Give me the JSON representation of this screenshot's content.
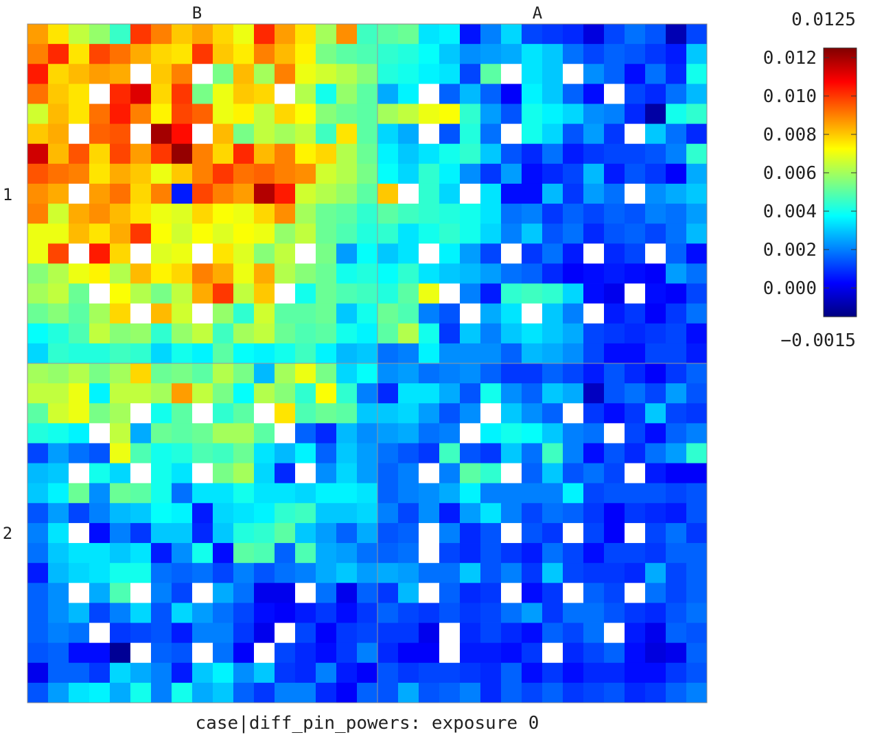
{
  "chart_data": {
    "type": "heatmap",
    "title": "case|diff_pin_powers: exposure 0",
    "column_labels": [
      "B",
      "A"
    ],
    "row_labels": [
      "1",
      "2"
    ],
    "pins_per_assembly": 17,
    "colorbar": {
      "min_label": "−0.0015",
      "max_label": "0.0125",
      "range": [
        -0.0015,
        0.0125
      ],
      "ticks": [
        0.012,
        0.01,
        0.008,
        0.006,
        0.004,
        0.002,
        0.0
      ],
      "tick_labels": [
        "0.012",
        "0.010",
        "0.008",
        "0.006",
        "0.004",
        "0.002",
        "0.000"
      ],
      "colormap": "jet"
    },
    "empty_cell_color": "#ffffff",
    "values": [
      [
        0.0086,
        0.0076,
        0.0064,
        0.0058,
        0.0045,
        0.01,
        0.009,
        0.008,
        0.0085,
        0.0078,
        0.007,
        0.0102,
        0.0086,
        0.0076,
        0.006,
        0.0088,
        0.0046,
        0.005,
        0.0052,
        0.0034,
        0.0036,
        0.0005,
        0.002,
        0.0032,
        0.0012,
        0.001,
        0.0008,
        -0.0002,
        0.0012,
        0.0018,
        0.0014,
        -0.0008,
        0.0012
      ],
      [
        0.009,
        0.0102,
        0.0076,
        0.0098,
        0.0092,
        0.0084,
        0.0078,
        0.0076,
        0.01,
        0.008,
        0.0075,
        0.009,
        0.0082,
        0.0074,
        0.0054,
        0.005,
        0.0048,
        0.0044,
        0.0042,
        0.0038,
        0.003,
        0.0022,
        0.0024,
        0.0026,
        0.0034,
        0.003,
        0.0018,
        0.0012,
        0.0016,
        0.0014,
        0.001,
        0.0006,
        0.003
      ],
      [
        0.0104,
        0.0078,
        0.0082,
        0.0086,
        0.0084,
        null,
        0.008,
        0.009,
        null,
        0.0054,
        0.0082,
        0.006,
        0.009,
        0.007,
        0.0066,
        0.0062,
        0.0056,
        0.0042,
        0.004,
        0.0036,
        0.0034,
        0.0012,
        0.005,
        null,
        0.0034,
        0.003,
        null,
        0.0022,
        0.0016,
        0.0004,
        0.0018,
        0.0008,
        0.004
      ],
      [
        0.0092,
        0.008,
        0.0076,
        null,
        0.0102,
        0.0112,
        0.0078,
        0.01,
        0.0054,
        0.007,
        0.008,
        0.0078,
        null,
        0.0062,
        0.004,
        0.0058,
        0.005,
        0.0026,
        0.0036,
        null,
        0.0016,
        0.0028,
        0.0016,
        0.0002,
        0.0036,
        0.003,
        0.0016,
        0.0004,
        null,
        0.0012,
        0.0008,
        0.0018,
        0.0028
      ],
      [
        0.0066,
        0.0082,
        0.0076,
        0.0092,
        0.0104,
        0.009,
        0.0074,
        0.0098,
        0.0094,
        0.007,
        0.0074,
        0.0064,
        0.0078,
        0.0072,
        0.0056,
        0.0052,
        0.005,
        0.006,
        0.0064,
        0.007,
        0.0072,
        0.0044,
        0.0024,
        0.0014,
        0.004,
        0.0036,
        0.0032,
        0.0022,
        0.002,
        0.0008,
        -0.001,
        0.004,
        0.0044
      ],
      [
        0.008,
        0.0084,
        null,
        0.0094,
        0.0096,
        null,
        0.012,
        0.0106,
        null,
        0.0082,
        0.0054,
        0.0064,
        0.006,
        0.0064,
        0.0046,
        0.0076,
        0.005,
        0.0032,
        0.0026,
        null,
        0.0014,
        0.0042,
        0.0018,
        null,
        0.004,
        0.0032,
        0.0014,
        0.0024,
        0.001,
        null,
        0.003,
        0.0018,
        0.0008
      ],
      [
        0.0114,
        0.0082,
        0.0096,
        0.0078,
        0.0098,
        0.0086,
        0.01,
        0.0122,
        0.009,
        0.0078,
        0.0102,
        0.0082,
        0.009,
        0.0074,
        0.0078,
        0.0062,
        0.0052,
        0.0036,
        0.003,
        0.0034,
        0.004,
        0.0044,
        0.003,
        0.0014,
        0.0008,
        0.0018,
        0.0006,
        0.001,
        0.0012,
        0.0012,
        0.0014,
        0.002,
        0.0044
      ],
      [
        0.0096,
        0.0092,
        0.009,
        0.0076,
        0.0084,
        0.008,
        0.007,
        0.008,
        0.009,
        0.01,
        0.0092,
        0.0094,
        0.009,
        0.0088,
        0.0066,
        0.0062,
        0.0054,
        0.0038,
        0.0032,
        0.0044,
        0.0036,
        0.0022,
        0.001,
        0.0024,
        0.0004,
        0.0008,
        0.0012,
        0.0028,
        0.0006,
        0.0014,
        0.001,
        0.0002,
        0.0026
      ],
      [
        0.0088,
        0.0084,
        null,
        0.0086,
        0.0092,
        0.0078,
        0.009,
        0.0006,
        0.0098,
        0.009,
        0.0086,
        0.0118,
        0.0104,
        0.0066,
        0.0062,
        0.0058,
        0.005,
        0.008,
        null,
        0.0044,
        0.0032,
        null,
        0.0034,
        0.0004,
        0.0004,
        0.0028,
        0.001,
        0.0024,
        0.0018,
        null,
        0.0022,
        0.0026,
        0.003
      ],
      [
        0.009,
        0.0066,
        0.0084,
        0.0088,
        0.0082,
        0.0076,
        0.007,
        0.0068,
        0.0078,
        0.0072,
        0.007,
        0.0078,
        0.0088,
        0.006,
        0.0052,
        0.005,
        0.0044,
        0.005,
        0.0046,
        0.0044,
        0.0042,
        0.004,
        0.0034,
        0.0018,
        0.002,
        0.001,
        0.0016,
        0.0012,
        0.0016,
        0.0014,
        0.002,
        0.0018,
        0.0024
      ],
      [
        0.007,
        0.007,
        0.0082,
        0.0076,
        0.0084,
        0.01,
        0.0072,
        0.0066,
        0.0072,
        0.0068,
        0.0072,
        0.007,
        0.0058,
        0.0064,
        0.0052,
        0.0048,
        0.0042,
        0.0044,
        0.0034,
        0.004,
        0.0044,
        0.004,
        0.0032,
        0.002,
        0.003,
        0.0014,
        0.0018,
        0.0008,
        0.0014,
        0.0016,
        0.0012,
        0.0018,
        0.0028
      ],
      [
        0.007,
        0.0098,
        null,
        0.0104,
        0.0078,
        null,
        0.0068,
        0.007,
        null,
        0.0076,
        0.0068,
        0.0056,
        0.0064,
        null,
        0.0054,
        0.0024,
        0.0038,
        0.003,
        0.0034,
        null,
        0.0036,
        0.0024,
        0.0012,
        null,
        0.001,
        0.0018,
        0.0006,
        null,
        0.0008,
        0.0012,
        null,
        0.0016,
        0.0004
      ],
      [
        0.0056,
        0.0062,
        0.007,
        0.0074,
        0.0062,
        0.0082,
        0.0074,
        0.0078,
        0.009,
        0.0084,
        0.007,
        0.0084,
        0.0062,
        0.0056,
        0.0052,
        0.004,
        0.0042,
        0.0038,
        0.0044,
        0.0034,
        0.003,
        0.0028,
        0.0024,
        0.0018,
        0.0016,
        0.0008,
        0.0002,
        0.0004,
        0.0006,
        0.0004,
        0.0002,
        0.0024,
        0.0018
      ],
      [
        0.006,
        0.0064,
        0.0052,
        null,
        0.0072,
        0.0062,
        0.0054,
        0.0064,
        0.0084,
        0.01,
        0.0064,
        0.008,
        null,
        0.004,
        0.0052,
        0.0048,
        0.0046,
        0.0042,
        0.005,
        0.007,
        null,
        0.002,
        0.0006,
        0.0044,
        0.0046,
        0.0044,
        0.0032,
        0.0004,
        0.0,
        null,
        0.0004,
        0.0002,
        0.0012
      ],
      [
        0.0052,
        0.0056,
        0.005,
        0.006,
        0.0078,
        null,
        0.0082,
        0.0066,
        null,
        0.0058,
        0.0044,
        0.0066,
        0.005,
        0.005,
        0.0052,
        0.003,
        0.004,
        0.0052,
        0.0048,
        0.002,
        0.0014,
        null,
        0.0026,
        0.0034,
        null,
        0.003,
        0.002,
        null,
        0.0006,
        0.001,
        0.0002,
        0.001,
        0.0018
      ],
      [
        0.0038,
        0.0042,
        0.0048,
        0.0064,
        0.0056,
        0.0058,
        0.0044,
        0.0058,
        0.0064,
        0.0046,
        0.006,
        0.0064,
        0.0052,
        0.0048,
        0.005,
        0.004,
        0.0036,
        0.005,
        0.0062,
        0.004,
        0.001,
        0.003,
        0.002,
        0.003,
        0.0034,
        0.003,
        0.0026,
        0.0012,
        0.001,
        0.0008,
        0.001,
        0.0012,
        0.0004
      ],
      [
        0.0032,
        0.0044,
        0.0042,
        0.0042,
        0.0046,
        0.0044,
        0.0032,
        0.004,
        0.0036,
        0.005,
        0.0038,
        0.0036,
        0.004,
        0.0046,
        0.0036,
        0.0028,
        0.003,
        0.0018,
        0.002,
        0.0036,
        0.0022,
        0.0022,
        0.0022,
        0.0016,
        0.0028,
        0.0026,
        0.0022,
        0.0012,
        0.0004,
        0.0004,
        0.0012,
        0.0012,
        0.0006
      ],
      [
        0.006,
        0.0058,
        0.0062,
        0.0054,
        0.006,
        0.0078,
        0.0052,
        0.0054,
        0.005,
        0.0062,
        0.0054,
        0.0028,
        0.006,
        0.007,
        0.0054,
        0.0032,
        0.0038,
        0.0022,
        0.0024,
        0.0018,
        0.002,
        0.0022,
        0.0016,
        0.001,
        0.001,
        0.0016,
        0.0012,
        0.0006,
        0.0014,
        0.0008,
        0.0002,
        0.001,
        0.0016
      ],
      [
        0.0064,
        0.0064,
        0.007,
        0.0036,
        0.0064,
        0.0064,
        0.006,
        0.0086,
        0.0064,
        0.0054,
        0.0038,
        0.0062,
        0.0056,
        0.0044,
        0.0072,
        0.0044,
        0.002,
        0.0008,
        0.0034,
        0.0034,
        0.0026,
        0.0014,
        0.004,
        0.0022,
        0.0016,
        0.003,
        0.0026,
        -0.0006,
        0.0014,
        0.0018,
        0.0012,
        0.0024,
        0.0014
      ],
      [
        0.005,
        0.0066,
        0.007,
        0.0054,
        0.006,
        null,
        0.004,
        0.005,
        null,
        0.0044,
        0.005,
        null,
        0.0076,
        0.0048,
        0.0052,
        0.005,
        0.003,
        0.003,
        0.0032,
        0.0024,
        0.0014,
        0.0022,
        null,
        0.003,
        0.0022,
        0.0016,
        null,
        0.001,
        0.0004,
        0.001,
        0.003,
        0.0012,
        0.001
      ],
      [
        0.0042,
        0.004,
        0.0036,
        null,
        0.0064,
        0.0026,
        0.0052,
        0.005,
        0.0052,
        0.006,
        0.006,
        0.005,
        null,
        0.0016,
        0.0008,
        0.0028,
        0.0022,
        0.0024,
        0.0026,
        0.0018,
        0.002,
        null,
        0.0036,
        0.004,
        0.0038,
        0.003,
        0.002,
        0.0018,
        null,
        0.0012,
        0.0004,
        0.0016,
        0.002
      ],
      [
        0.0012,
        0.0024,
        0.0018,
        0.0014,
        0.007,
        0.0048,
        0.004,
        0.0042,
        0.0048,
        0.0046,
        0.0052,
        0.0034,
        0.0028,
        0.0036,
        0.0016,
        0.003,
        0.0024,
        0.0018,
        0.0014,
        0.001,
        0.0046,
        0.0014,
        0.001,
        0.003,
        0.0018,
        0.0046,
        0.002,
        0.0004,
        0.0014,
        0.0008,
        0.0018,
        0.0024,
        0.0044
      ],
      [
        0.0028,
        0.003,
        null,
        0.004,
        0.0032,
        null,
        0.004,
        0.0034,
        null,
        0.0054,
        0.006,
        0.0032,
        0.0008,
        null,
        0.0022,
        0.0032,
        0.0024,
        0.0016,
        0.002,
        null,
        0.002,
        0.005,
        0.0044,
        null,
        0.0016,
        0.003,
        0.0014,
        0.0018,
        0.0012,
        null,
        0.0006,
        0.0002,
        0.0002
      ],
      [
        0.003,
        0.0036,
        0.0052,
        0.0022,
        0.0052,
        0.005,
        0.004,
        0.0018,
        0.0034,
        0.0034,
        0.004,
        0.0034,
        0.0034,
        0.0032,
        0.0036,
        0.0036,
        0.0034,
        0.0016,
        0.002,
        0.0022,
        0.0026,
        0.0036,
        0.002,
        0.002,
        0.002,
        0.002,
        0.0036,
        0.0012,
        0.0014,
        0.0014,
        0.0014,
        0.0012,
        0.0014
      ],
      [
        0.0014,
        0.0024,
        0.0012,
        0.002,
        0.0028,
        0.003,
        0.0038,
        0.0036,
        0.0006,
        0.0032,
        0.0034,
        0.0036,
        0.0044,
        0.0046,
        0.003,
        0.003,
        0.0032,
        0.002,
        0.0012,
        0.0022,
        0.0006,
        0.0024,
        0.0034,
        0.002,
        0.0012,
        0.0018,
        0.0016,
        0.001,
        0.0002,
        0.001,
        0.0008,
        0.0006,
        0.0014
      ],
      [
        0.002,
        0.0034,
        null,
        0.0004,
        0.002,
        0.001,
        0.003,
        0.003,
        0.0008,
        0.003,
        0.0042,
        0.0044,
        0.005,
        0.003,
        0.0024,
        0.0016,
        0.0026,
        0.0014,
        0.0016,
        null,
        0.002,
        0.0008,
        0.0014,
        null,
        0.0014,
        0.001,
        null,
        0.0012,
        0.0002,
        null,
        0.0012,
        0.0018,
        0.001
      ],
      [
        0.0018,
        0.003,
        0.0034,
        0.0034,
        0.003,
        0.0034,
        0.0006,
        0.0022,
        0.004,
        0.0004,
        0.005,
        0.0048,
        0.0016,
        0.0048,
        0.0026,
        0.0024,
        0.0018,
        0.0016,
        0.0018,
        null,
        0.0012,
        0.0008,
        0.0014,
        0.001,
        0.0006,
        0.0018,
        0.0012,
        0.0004,
        0.0012,
        0.0012,
        0.001,
        0.0016,
        0.0016
      ],
      [
        0.0006,
        0.0028,
        0.0032,
        0.0034,
        0.004,
        0.004,
        0.0018,
        0.0016,
        0.0018,
        0.0012,
        0.002,
        0.0014,
        0.0018,
        0.002,
        0.0026,
        0.003,
        0.0024,
        0.0026,
        0.0024,
        0.0018,
        0.0018,
        0.003,
        0.0014,
        0.002,
        0.001,
        0.003,
        0.0012,
        0.001,
        0.001,
        0.0008,
        0.0026,
        0.0012,
        0.0016
      ],
      [
        0.0016,
        0.0022,
        null,
        0.0026,
        0.0048,
        null,
        0.002,
        0.0012,
        null,
        0.0026,
        0.0018,
        0.0,
        0.0,
        null,
        0.0018,
        0.0,
        0.0016,
        0.001,
        0.0028,
        null,
        0.0016,
        0.0008,
        0.001,
        null,
        0.0004,
        0.001,
        null,
        0.0016,
        0.0012,
        null,
        0.0018,
        0.0012,
        0.0016
      ],
      [
        0.0016,
        0.0022,
        0.0028,
        0.0012,
        0.002,
        0.0032,
        0.0014,
        0.0032,
        0.0024,
        0.0018,
        0.0012,
        0.0004,
        0.0002,
        0.0006,
        0.001,
        0.0004,
        0.001,
        0.0016,
        0.0012,
        0.001,
        0.0014,
        0.001,
        0.0012,
        0.0018,
        0.0024,
        0.001,
        0.0018,
        0.0018,
        0.0014,
        0.001,
        0.0008,
        0.0014,
        0.0018
      ],
      [
        0.0016,
        0.002,
        0.0018,
        null,
        0.001,
        0.0012,
        0.0014,
        0.0006,
        0.002,
        0.002,
        0.001,
        0.0,
        null,
        0.0012,
        0.0002,
        0.001,
        0.0012,
        0.001,
        0.001,
        0.0,
        null,
        0.0008,
        0.0012,
        0.0008,
        0.0004,
        0.0016,
        0.0012,
        0.0018,
        null,
        0.0006,
        0.0,
        0.0016,
        0.0014
      ],
      [
        0.0014,
        0.0016,
        0.0004,
        0.0004,
        -0.0012,
        null,
        0.0016,
        0.0014,
        null,
        0.0018,
        0.0002,
        null,
        0.0012,
        0.0008,
        0.0004,
        0.001,
        0.002,
        0.0008,
        0.0002,
        0.0002,
        null,
        0.0006,
        0.0006,
        0.0004,
        0.001,
        null,
        0.0008,
        0.0012,
        0.0016,
        0.0004,
        -0.0002,
        0.0,
        0.0016
      ],
      [
        0.0,
        0.0016,
        0.0016,
        0.001,
        0.0032,
        0.0026,
        0.002,
        0.0006,
        0.003,
        0.0036,
        0.0022,
        0.003,
        0.001,
        0.0008,
        0.002,
        0.0006,
        0.0002,
        0.0014,
        0.001,
        0.0012,
        0.0012,
        0.001,
        0.0008,
        0.0016,
        0.0004,
        0.001,
        0.0004,
        0.0008,
        0.0008,
        0.0004,
        0.0004,
        0.001,
        0.0014
      ],
      [
        0.0014,
        0.0024,
        0.0034,
        0.0036,
        0.0026,
        0.004,
        0.002,
        0.004,
        0.0026,
        0.003,
        0.0016,
        0.001,
        0.002,
        0.002,
        0.0008,
        0.0002,
        0.0016,
        0.0014,
        0.0026,
        0.0014,
        0.0016,
        0.002,
        0.0008,
        0.0016,
        0.0012,
        0.0016,
        0.001,
        0.0012,
        0.0014,
        0.0008,
        0.001,
        0.0016,
        0.002
      ]
    ]
  }
}
